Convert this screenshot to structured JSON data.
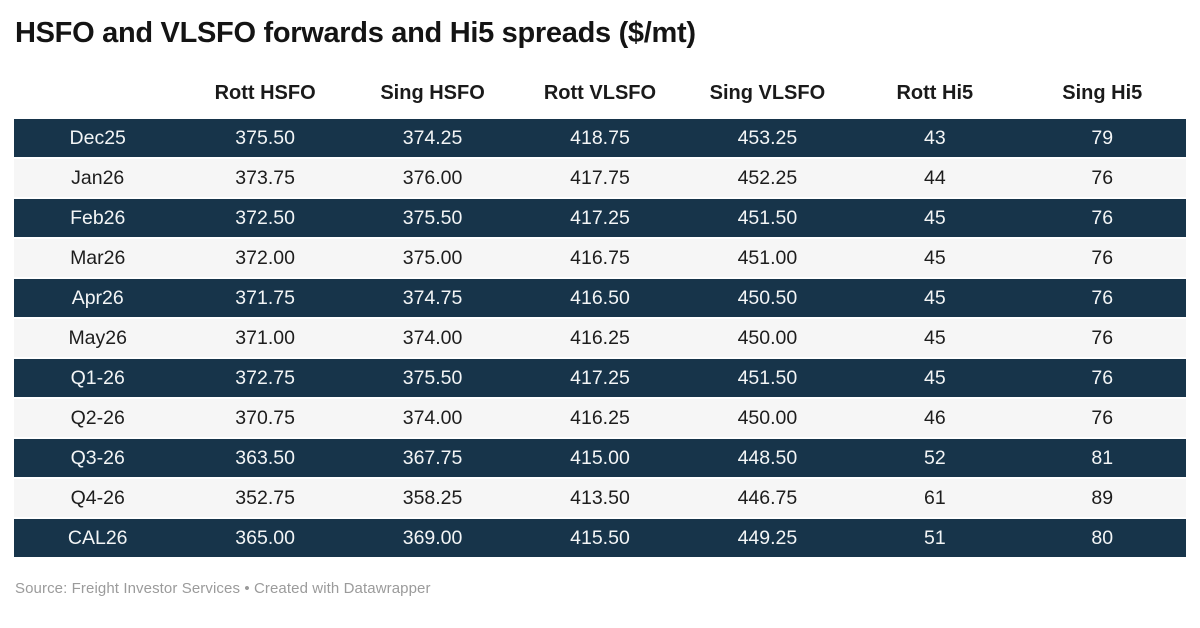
{
  "title": "HSFO and VLSFO forwards and Hi5 spreads ($/mt)",
  "footer": {
    "text": "Source: Freight Investor Services • Created with Datawrapper"
  },
  "colors": {
    "dark_row_bg": "#17344a",
    "dark_row_text": "#f3f5f6",
    "light_row_bg": "#f6f6f6",
    "light_row_text": "#1d1d1d",
    "title_text": "#141414",
    "header_text": "#1a1a1a",
    "footer_text": "#9b9b9b"
  },
  "chart_data": {
    "type": "table",
    "title": "HSFO and VLSFO forwards and Hi5 spreads ($/mt)",
    "columns": [
      "",
      "Rott HSFO",
      "Sing HSFO",
      "Rott VLSFO",
      "Sing VLSFO",
      "Rott Hi5",
      "Sing Hi5"
    ],
    "rows": [
      [
        "Dec25",
        "375.50",
        "374.25",
        "418.75",
        "453.25",
        "43",
        "79"
      ],
      [
        "Jan26",
        "373.75",
        "376.00",
        "417.75",
        "452.25",
        "44",
        "76"
      ],
      [
        "Feb26",
        "372.50",
        "375.50",
        "417.25",
        "451.50",
        "45",
        "76"
      ],
      [
        "Mar26",
        "372.00",
        "375.00",
        "416.75",
        "451.00",
        "45",
        "76"
      ],
      [
        "Apr26",
        "371.75",
        "374.75",
        "416.50",
        "450.50",
        "45",
        "76"
      ],
      [
        "May26",
        "371.00",
        "374.00",
        "416.25",
        "450.00",
        "45",
        "76"
      ],
      [
        "Q1-26",
        "372.75",
        "375.50",
        "417.25",
        "451.50",
        "45",
        "76"
      ],
      [
        "Q2-26",
        "370.75",
        "374.00",
        "416.25",
        "450.00",
        "46",
        "76"
      ],
      [
        "Q3-26",
        "363.50",
        "367.75",
        "415.00",
        "448.50",
        "52",
        "81"
      ],
      [
        "Q4-26",
        "352.75",
        "358.25",
        "413.50",
        "446.75",
        "61",
        "89"
      ],
      [
        "CAL26",
        "365.00",
        "369.00",
        "415.50",
        "449.25",
        "51",
        "80"
      ]
    ],
    "row_striping": "alternating starting dark on first row",
    "source": "Freight Investor Services",
    "created_with": "Datawrapper"
  }
}
